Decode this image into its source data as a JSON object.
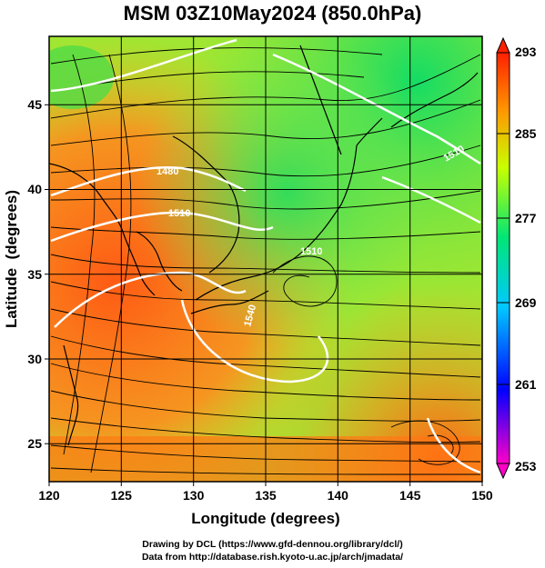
{
  "title": "MSM 03Z10May2024 (850.0hPa)",
  "axes": {
    "xlabel": "Longitude (degrees)",
    "ylabel": "Latitude  (degrees)",
    "x_range": [
      120,
      150
    ],
    "y_range": [
      22.4,
      47.6
    ],
    "x_ticks": [
      "120",
      "125",
      "130",
      "135",
      "140",
      "145",
      "150"
    ],
    "x_tick_values": [
      120,
      125,
      130,
      135,
      140,
      145,
      150
    ],
    "y_ticks": [
      "25",
      "30",
      "35",
      "40",
      "45"
    ],
    "y_tick_values": [
      25,
      30,
      35,
      40,
      45
    ]
  },
  "colorbar": {
    "labels": [
      "293",
      "285",
      "277",
      "269",
      "261",
      "253"
    ],
    "values": [
      293,
      285,
      277,
      269,
      261,
      253
    ],
    "min": 253,
    "max": 293,
    "colors": [
      "#ff00c8",
      "#0000ff",
      "#00c8ff",
      "#00e676",
      "#c8ff00",
      "#ff2000"
    ]
  },
  "contour_labels": [
    "1480",
    "1510",
    "1510",
    "1540",
    "1510"
  ],
  "credits": {
    "line1": "Drawing by DCL (https://www.gfd-dennou.org/library/dcl/)",
    "line2": "Data from http://database.rish.kyoto-u.ac.jp/arch/jmadata/"
  },
  "colors": {
    "warm": "#ff5a14",
    "mid": "#c8e614",
    "cool": "#14dc64",
    "contour": "#ffffff",
    "streamline": "#000000",
    "coast": "#000000"
  },
  "icons": [
    "colorbar-up-arrow-icon",
    "colorbar-down-arrow-icon"
  ]
}
